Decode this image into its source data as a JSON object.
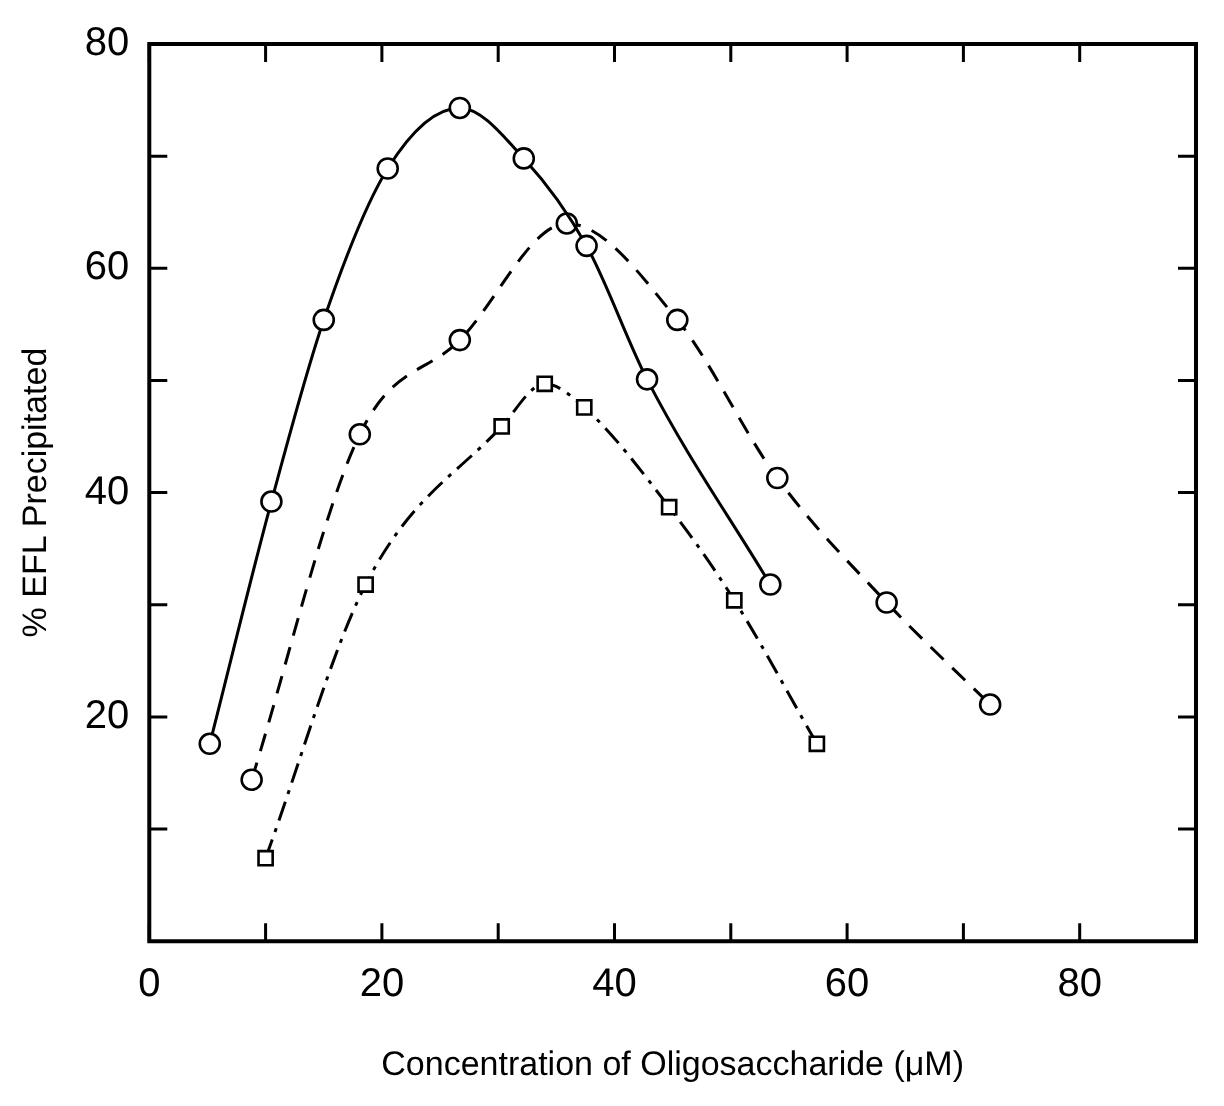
{
  "chart_data": {
    "type": "line",
    "xlabel": "Concentration of Oligosaccharide (μM)",
    "ylabel": "% EFL Precipitated",
    "xlim": [
      0,
      90
    ],
    "ylim": [
      0,
      80
    ],
    "xticks": [
      0,
      {
        "value": 10,
        "label": null
      },
      20,
      {
        "value": 30,
        "label": null
      },
      40,
      {
        "value": 50,
        "label": null
      },
      60,
      {
        "value": 70,
        "label": null
      },
      80
    ],
    "yticks": [
      {
        "value": 10,
        "label": null
      },
      20,
      {
        "value": 30,
        "label": null
      },
      40,
      {
        "value": 50,
        "label": null
      },
      60,
      {
        "value": 70,
        "label": null
      },
      80
    ],
    "grid": false,
    "legend": false,
    "series": [
      {
        "color": "#000000",
        "marker": "circle",
        "line_style": "solid",
        "x": [
          5.2,
          10.5,
          15,
          20.5,
          26.7,
          32.2,
          37.6,
          42.8,
          53.4
        ],
        "values": [
          17.6,
          39.2,
          55.4,
          68.9,
          74.3,
          69.8,
          62,
          50.1,
          31.8
        ]
      },
      {
        "color": "#000000",
        "marker": "circle",
        "line_style": "dashed",
        "x": [
          8.8,
          18.1,
          26.7,
          35.9,
          45.4,
          54,
          63.4,
          72.3
        ],
        "values": [
          14.4,
          45.2,
          53.6,
          64,
          55.4,
          41.3,
          30.2,
          21.1
        ]
      },
      {
        "color": "#000000",
        "marker": "square",
        "line_style": "dashdot",
        "x": [
          10,
          18.6,
          30.3,
          34,
          37.4,
          44.7,
          50.3,
          57.4
        ],
        "values": [
          7.4,
          31.8,
          45.9,
          49.7,
          47.6,
          38.7,
          30.4,
          17.6
        ]
      }
    ]
  }
}
